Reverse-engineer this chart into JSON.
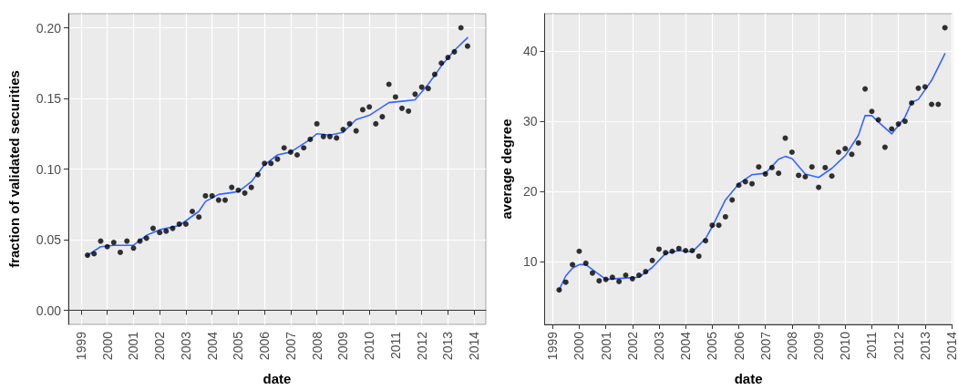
{
  "chart_data": [
    {
      "type": "scatter",
      "xlabel": "date",
      "ylabel": "fraction of validated securities",
      "marker": "circle",
      "grid": true,
      "x": [
        "1999-04",
        "1999-07",
        "1999-10",
        "2000-01",
        "2000-04",
        "2000-07",
        "2000-10",
        "2001-01",
        "2001-04",
        "2001-07",
        "2001-10",
        "2002-01",
        "2002-04",
        "2002-07",
        "2002-10",
        "2003-01",
        "2003-04",
        "2003-07",
        "2003-10",
        "2004-01",
        "2004-04",
        "2004-07",
        "2004-10",
        "2005-01",
        "2005-04",
        "2005-07",
        "2005-10",
        "2006-01",
        "2006-04",
        "2006-07",
        "2006-10",
        "2007-01",
        "2007-04",
        "2007-07",
        "2007-10",
        "2008-01",
        "2008-04",
        "2008-07",
        "2008-10",
        "2009-01",
        "2009-04",
        "2009-07",
        "2009-10",
        "2010-01",
        "2010-04",
        "2010-07",
        "2010-10",
        "2011-01",
        "2011-04",
        "2011-07",
        "2011-10",
        "2012-01",
        "2012-04",
        "2012-07",
        "2012-10",
        "2013-01",
        "2013-04",
        "2013-07",
        "2013-10"
      ],
      "xlim": [
        "1998-07-08",
        "2014-06-13"
      ],
      "xticks": [
        "1999",
        "2000",
        "2001",
        "2002",
        "2003",
        "2004",
        "2005",
        "2006",
        "2007",
        "2008",
        "2009",
        "2010",
        "2011",
        "2012",
        "2013",
        "2014"
      ],
      "ylim": [
        -0.01,
        0.21
      ],
      "yticks": [
        {
          "value": 0,
          "label": "0.00"
        },
        {
          "value": 0.05,
          "label": "0.05"
        },
        {
          "value": 0.1,
          "label": "0.10"
        },
        {
          "value": 0.15,
          "label": "0.15"
        },
        {
          "value": 0.2,
          "label": "0.20"
        }
      ],
      "series": [
        {
          "color": "#000000",
          "values": [
            0.039,
            0.04,
            0.049,
            0.045,
            0.048,
            0.041,
            0.049,
            0.044,
            0.049,
            0.051,
            0.058,
            0.055,
            0.056,
            0.058,
            0.061,
            0.061,
            0.07,
            0.066,
            0.081,
            0.081,
            0.078,
            0.078,
            0.087,
            0.085,
            0.083,
            0.087,
            0.096,
            0.104,
            0.104,
            0.107,
            0.115,
            0.112,
            0.11,
            0.115,
            0.121,
            0.132,
            0.123,
            0.123,
            0.122,
            0.128,
            0.132,
            0.127,
            0.142,
            0.144,
            0.132,
            0.137,
            0.16,
            0.151,
            0.143,
            0.141,
            0.153,
            0.158,
            0.157,
            0.167,
            0.175,
            0.179,
            0.183,
            0.2,
            0.187
          ]
        },
        {
          "type": "line",
          "color": "#3366ff",
          "line_style": "solid",
          "marker": "none",
          "x": [
            "1999-04",
            "1999-10",
            "2000-04",
            "2001-01",
            "2001-07",
            "2002-01",
            "2002-10",
            "2003-07",
            "2003-10",
            "2004-04",
            "2005-01",
            "2005-07",
            "2006-01",
            "2006-07",
            "2007-01",
            "2007-10",
            "2008-01",
            "2008-07",
            "2009-01",
            "2009-07",
            "2010-01",
            "2010-10",
            "2011-04",
            "2011-10",
            "2012-04",
            "2012-10",
            "2013-04",
            "2013-10"
          ],
          "values": [
            0.039,
            0.045,
            0.046,
            0.046,
            0.053,
            0.057,
            0.06,
            0.07,
            0.077,
            0.082,
            0.084,
            0.091,
            0.103,
            0.11,
            0.112,
            0.121,
            0.125,
            0.124,
            0.126,
            0.135,
            0.138,
            0.147,
            0.148,
            0.149,
            0.16,
            0.173,
            0.184,
            0.193
          ]
        }
      ]
    },
    {
      "type": "scatter",
      "xlabel": "date",
      "ylabel": "average degree",
      "marker": "circle",
      "grid": true,
      "x": [
        "1999-04",
        "1999-07",
        "1999-10",
        "2000-01",
        "2000-04",
        "2000-07",
        "2000-10",
        "2001-01",
        "2001-04",
        "2001-07",
        "2001-10",
        "2002-01",
        "2002-04",
        "2002-07",
        "2002-10",
        "2003-01",
        "2003-04",
        "2003-07",
        "2003-10",
        "2004-01",
        "2004-04",
        "2004-07",
        "2004-10",
        "2005-01",
        "2005-04",
        "2005-07",
        "2005-10",
        "2006-01",
        "2006-04",
        "2006-07",
        "2006-10",
        "2007-01",
        "2007-04",
        "2007-07",
        "2007-10",
        "2008-01",
        "2008-04",
        "2008-07",
        "2008-10",
        "2009-01",
        "2009-04",
        "2009-07",
        "2009-10",
        "2010-01",
        "2010-04",
        "2010-07",
        "2010-10",
        "2011-01",
        "2011-04",
        "2011-07",
        "2011-10",
        "2012-01",
        "2012-04",
        "2012-07",
        "2012-10",
        "2013-01",
        "2013-04",
        "2013-07",
        "2013-10"
      ],
      "xlim": [
        "1998-09-13",
        "2014-01-10"
      ],
      "xticks": [
        "1999",
        "2000",
        "2001",
        "2002",
        "2003",
        "2004",
        "2005",
        "2006",
        "2007",
        "2008",
        "2009",
        "2010",
        "2011",
        "2012",
        "2013",
        "2014"
      ],
      "ylim": [
        1.1,
        45.3
      ],
      "yticks": [
        10,
        20,
        30,
        40
      ],
      "series": [
        {
          "color": "#000000",
          "values": [
            6.0,
            7.1,
            9.6,
            11.5,
            9.8,
            8.4,
            7.3,
            7.5,
            7.8,
            7.2,
            8.1,
            7.6,
            8.1,
            8.6,
            10.2,
            11.8,
            11.3,
            11.5,
            11.9,
            11.6,
            11.6,
            10.8,
            13.0,
            15.2,
            15.2,
            16.4,
            18.8,
            20.9,
            21.4,
            21.1,
            23.5,
            22.5,
            23.4,
            22.6,
            27.6,
            25.6,
            22.3,
            22.1,
            23.5,
            20.6,
            23.4,
            22.2,
            25.6,
            26.1,
            25.3,
            26.9,
            34.6,
            31.4,
            30.2,
            26.3,
            28.9,
            29.6,
            30.0,
            32.6,
            34.7,
            34.9,
            32.4,
            32.4,
            43.3
          ]
        },
        {
          "type": "line",
          "color": "#3366ff",
          "line_style": "solid",
          "marker": "none",
          "x": [
            "1999-04",
            "1999-07",
            "1999-10",
            "2000-01",
            "2000-04",
            "2000-07",
            "2001-01",
            "2001-10",
            "2002-04",
            "2002-10",
            "2003-04",
            "2003-10",
            "2004-04",
            "2004-10",
            "2005-01",
            "2005-04",
            "2005-07",
            "2006-01",
            "2006-07",
            "2007-01",
            "2007-07",
            "2007-10",
            "2008-01",
            "2008-07",
            "2009-01",
            "2009-07",
            "2010-01",
            "2010-07",
            "2010-10",
            "2011-01",
            "2011-04",
            "2011-10",
            "2012-04",
            "2012-07",
            "2012-10",
            "2013-04",
            "2013-10"
          ],
          "values": [
            6.0,
            8.0,
            9.1,
            9.6,
            9.6,
            8.9,
            7.5,
            7.7,
            7.8,
            9.2,
            11.2,
            11.6,
            11.4,
            13.3,
            15.0,
            16.9,
            18.8,
            21.1,
            22.4,
            22.6,
            24.6,
            25.0,
            24.7,
            22.5,
            22.0,
            23.3,
            25.1,
            28.0,
            30.8,
            30.8,
            29.9,
            28.2,
            30.6,
            32.7,
            33.1,
            35.8,
            39.6
          ]
        }
      ]
    }
  ]
}
